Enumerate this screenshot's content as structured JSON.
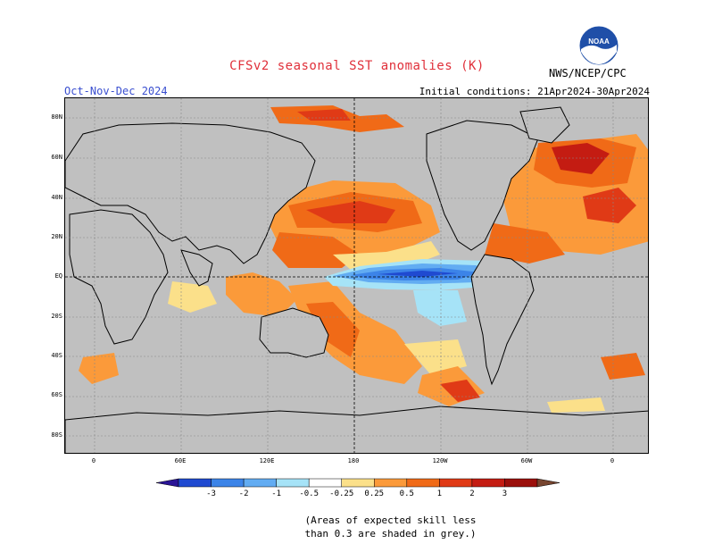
{
  "header": {
    "title": "CFSv2 seasonal SST anomalies (K)",
    "season": "Oct-Nov-Dec 2024",
    "initial_conditions": "Initial conditions: 21Apr2024-30Apr2024",
    "organization": "NWS/NCEP/CPC",
    "logo_text": "NOAA"
  },
  "map": {
    "lat_labels": [
      "80N",
      "60N",
      "40N",
      "20N",
      "EQ",
      "20S",
      "40S",
      "60S",
      "80S"
    ],
    "lon_labels": [
      "0",
      "60E",
      "120E",
      "180",
      "120W",
      "60W",
      "0"
    ],
    "dashed_guides": [
      "EQ",
      "180"
    ],
    "grey_meaning": "low skill"
  },
  "colorbar": {
    "tick_labels": [
      "-3",
      "-2",
      "-1",
      "-0.5",
      "-0.25",
      "0.25",
      "0.5",
      "1",
      "2",
      "3"
    ],
    "colors": [
      "#2a1496",
      "#1f4ad1",
      "#3c84e8",
      "#62acf2",
      "#a6e3f7",
      "#ffffff",
      "#fbe08a",
      "#fb9a3a",
      "#f06a17",
      "#e03a16",
      "#c41c12",
      "#9b0f0b",
      "#77452f"
    ]
  },
  "footnote": {
    "line1": "(Areas of expected skill less",
    "line2": "than 0.3 are shaded in grey.)"
  }
}
